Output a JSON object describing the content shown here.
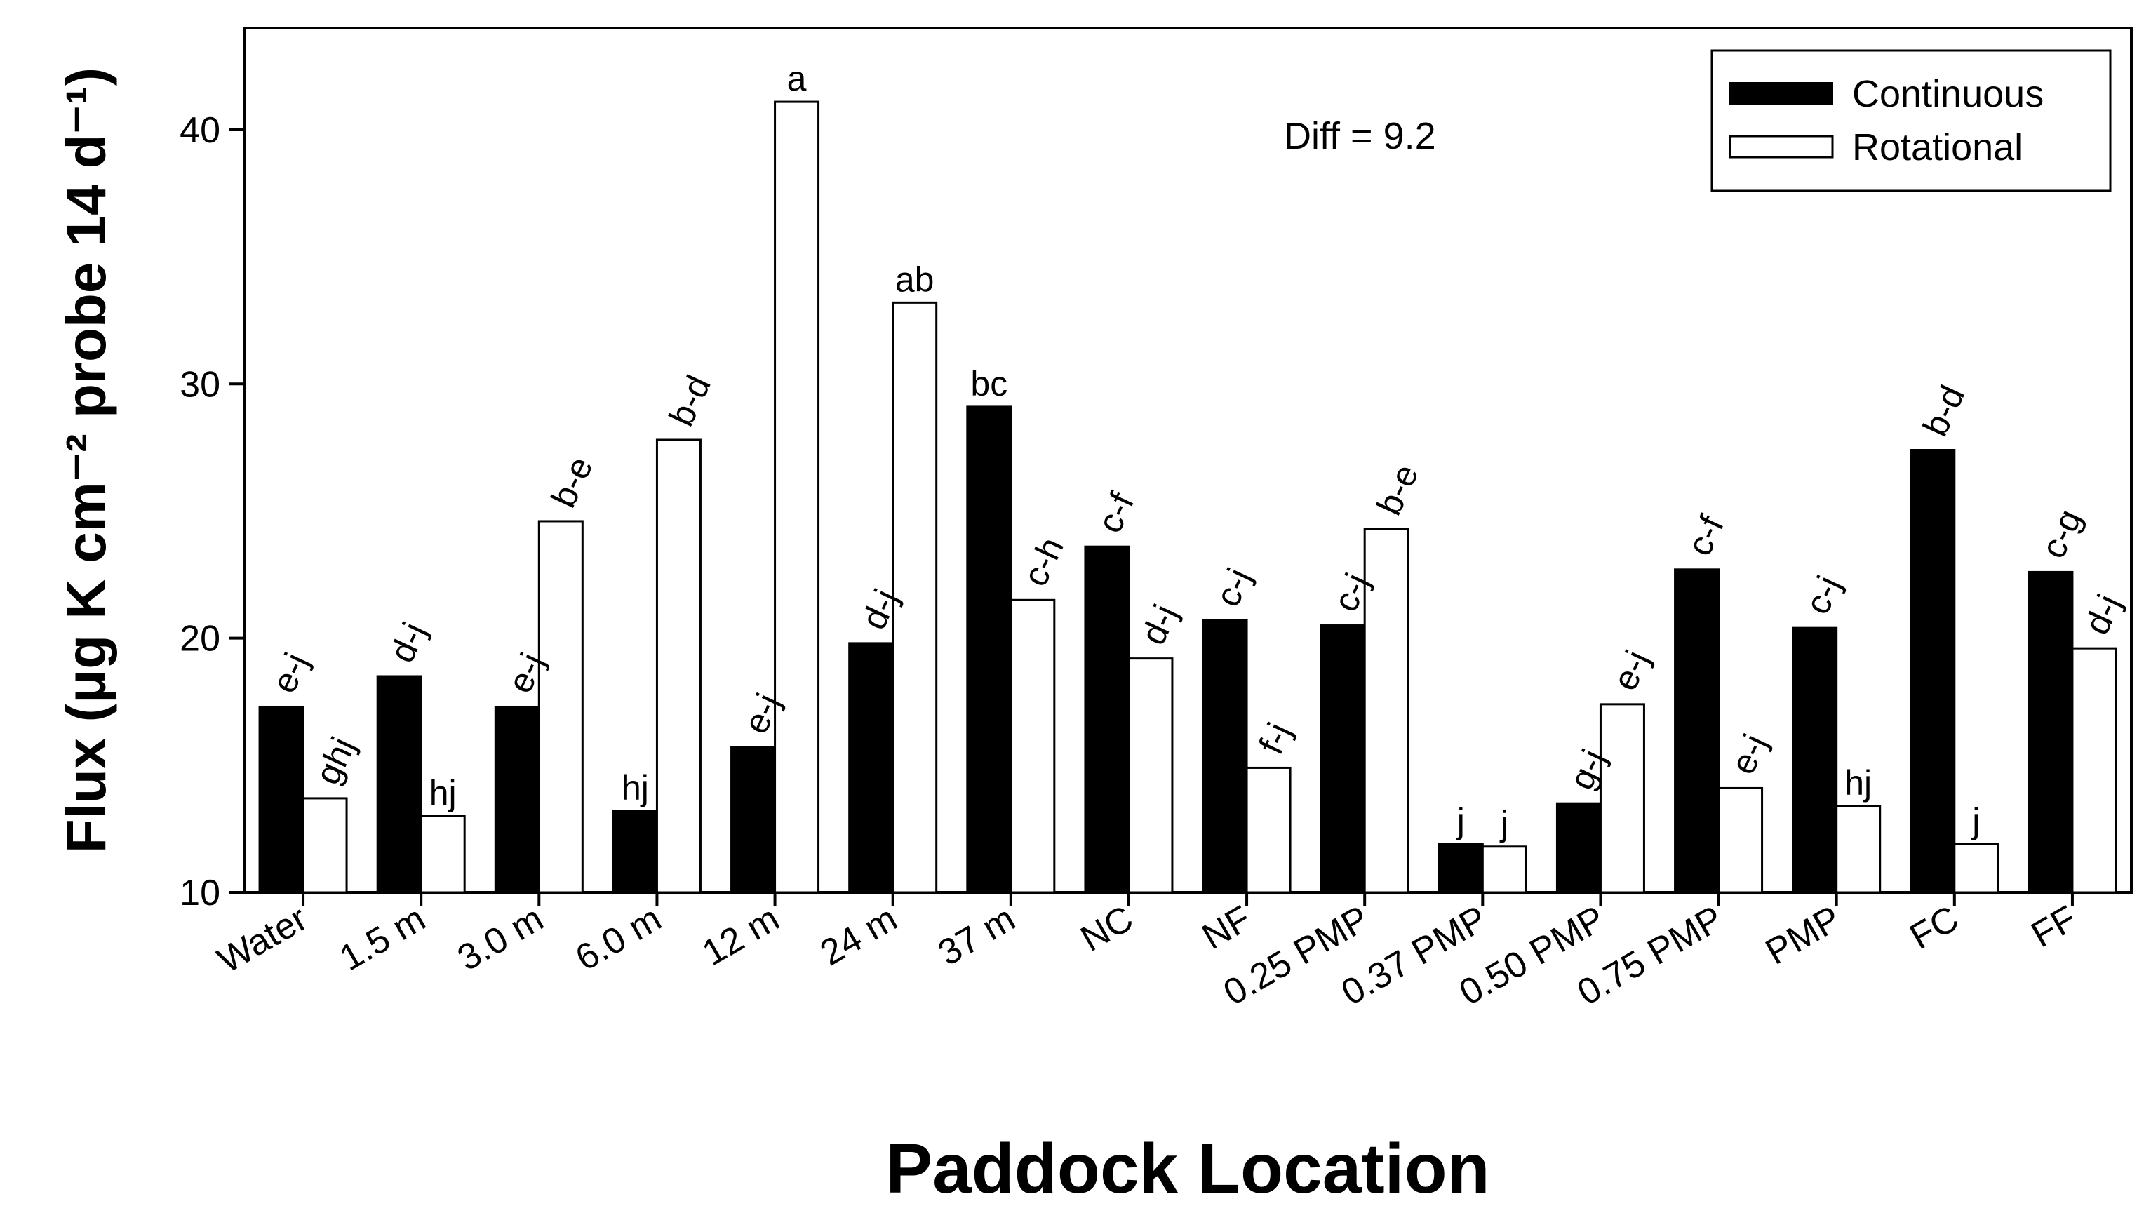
{
  "chart_data": {
    "type": "bar",
    "categories": [
      "Water",
      "1.5 m",
      "3.0 m",
      "6.0 m",
      "12 m",
      "24 m",
      "37 m",
      "NC",
      "NF",
      "0.25 PMP",
      "0.37 PMP",
      "0.50 PMP",
      "0.75 PMP",
      "PMP",
      "FC",
      "FF"
    ],
    "series": [
      {
        "name": "Continuous",
        "color": "#000000",
        "values": [
          17.3,
          18.5,
          17.3,
          13.2,
          15.7,
          19.8,
          29.1,
          23.6,
          20.7,
          20.5,
          11.9,
          13.5,
          22.7,
          20.4,
          27.4,
          22.6
        ],
        "labels": [
          "e-j",
          "d-j",
          "e-j",
          "hj",
          "e-j",
          "d-j",
          "bc",
          "c-f",
          "c-j",
          "c-j",
          "j",
          "g-j",
          "c-f",
          "c-j",
          "b-d",
          "c-g"
        ]
      },
      {
        "name": "Rotational",
        "color": "#ffffff",
        "values": [
          13.7,
          13.0,
          24.6,
          27.8,
          41.1,
          33.2,
          21.5,
          19.2,
          14.9,
          24.3,
          11.8,
          17.4,
          14.1,
          13.4,
          11.9,
          19.6
        ],
        "labels": [
          "ghj",
          "hj",
          "b-e",
          "b-d",
          "a",
          "ab",
          "c-h",
          "d-j",
          "f-j",
          "b-e",
          "j",
          "e-j",
          "e-j",
          "hj",
          "j",
          "d-j"
        ]
      }
    ],
    "title": "",
    "xlabel": "Paddock Location",
    "ylabel": "Flux (μg K cm⁻² probe 14 d⁻¹)",
    "ylim": [
      10,
      44
    ],
    "yticks": [
      "10",
      "20",
      "30",
      "40"
    ],
    "grid": false,
    "legend_position": "top-right",
    "annotation": "Diff = 9.2"
  }
}
